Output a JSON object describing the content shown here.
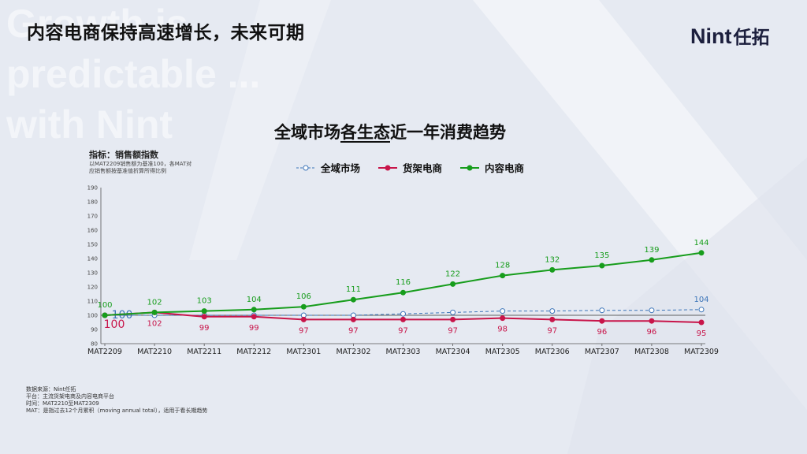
{
  "page": {
    "title": "内容电商保持高速增长，未来可期",
    "watermark": [
      "Growth is",
      "predictable ...",
      "with Nint"
    ],
    "logo_latin": "Nint",
    "logo_cjk": "任拓"
  },
  "notes": {
    "index_title": "指标：销售额指数",
    "index_lines": [
      "以MAT2209销售额为基准100，各MAT对",
      "应销售额按基准值折算所得比例"
    ]
  },
  "source": {
    "lines": [
      "数据来源：Nint任拓",
      "平台：主流货架电商及内容电商平台",
      "时间：MAT2210至MAT2309",
      "MAT：是指过去12个月累积（moving annual total），适用于看长期趋势"
    ]
  },
  "chart_data": {
    "type": "line",
    "title": {
      "pre": "全域市场",
      "underlined": "各生态",
      "post": "近一年消费趋势"
    },
    "x": [
      "MAT2209",
      "MAT2210",
      "MAT2211",
      "MAT2212",
      "MAT2301",
      "MAT2302",
      "MAT2303",
      "MAT2304",
      "MAT2305",
      "MAT2306",
      "MAT2307",
      "MAT2308",
      "MAT2309"
    ],
    "y_ticks": [
      80,
      90,
      100,
      110,
      120,
      130,
      140,
      150,
      160,
      170,
      180,
      190
    ],
    "ylim": [
      80,
      190
    ],
    "grid": false,
    "legend_position": "top-center",
    "series": [
      {
        "name": "全域市场",
        "color": "#3b74b8",
        "style": "dashed-open-marker",
        "values": [
          100,
          100,
          100,
          100,
          100,
          100,
          101,
          102,
          103,
          103,
          103.5,
          103.5,
          104
        ],
        "labels": {
          "0": "100",
          "12": "104"
        }
      },
      {
        "name": "货架电商",
        "color": "#c8154a",
        "style": "solid",
        "values": [
          100,
          102,
          99,
          99,
          97,
          97,
          97,
          97,
          98,
          97,
          96,
          96,
          95
        ],
        "labels": {
          "0": "100",
          "1": "102",
          "2": "99",
          "3": "99",
          "4": "97",
          "5": "97",
          "6": "97",
          "7": "97",
          "8": "98",
          "9": "97",
          "10": "96",
          "11": "96",
          "12": "95"
        }
      },
      {
        "name": "内容电商",
        "color": "#179d1c",
        "style": "solid",
        "values": [
          100,
          102,
          103,
          104,
          106,
          111,
          116,
          122,
          128,
          132,
          135,
          139,
          144
        ],
        "labels": {
          "0": "100",
          "1": "102",
          "2": "103",
          "3": "104",
          "4": "106",
          "5": "111",
          "6": "116",
          "7": "122",
          "8": "128",
          "9": "132",
          "10": "135",
          "11": "139",
          "12": "144"
        }
      }
    ]
  }
}
